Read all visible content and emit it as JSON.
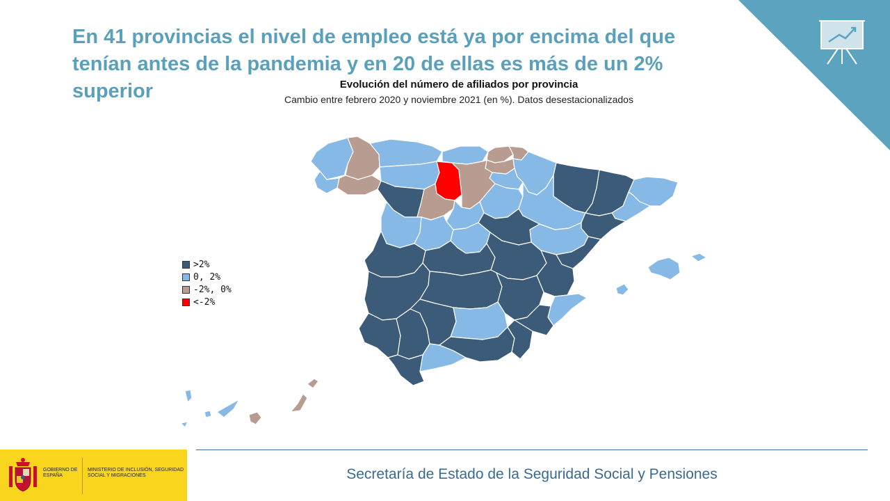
{
  "headline": "En 41 provincias el nivel de empleo está ya por encima del que tenían antes de la pandemia y en 20 de ellas es más de un 2% superior",
  "chart_data": {
    "type": "choropleth",
    "title": "Evolución del número de afiliados por provincia",
    "subtitle": "Cambio entre febrero 2020 y noviembre 2021 (en %). Datos desestacionalizados",
    "legend": {
      "placement": "left",
      "items": [
        {
          "label": ">2%",
          "color": "#3b5b78"
        },
        {
          "label": "0, 2%",
          "color": "#86b9e6"
        },
        {
          "label": "-2%, 0%",
          "color": "#b89c92"
        },
        {
          "label": "<-2%",
          "color": "#ff0000"
        }
      ]
    },
    "counts": {
      "above_2": 20,
      "above_0": 41
    }
  },
  "footer": {
    "text": "Secretaría de Estado de la Seguridad Social y Pensiones"
  },
  "badge": {
    "gobierno": "GOBIERNO DE ESPAÑA",
    "ministerio": "MINISTERIO DE INCLUSIÓN, SEGURIDAD SOCIAL Y MIGRACIONES"
  },
  "icons": {
    "corner": "presentation-chart-icon",
    "crest": "coat-of-arms-icon"
  },
  "colors": {
    "accent": "#5ba3bf",
    "headline": "#5aa0bb",
    "footer": "#3a6a8f",
    "badge": "#f9d51d"
  }
}
